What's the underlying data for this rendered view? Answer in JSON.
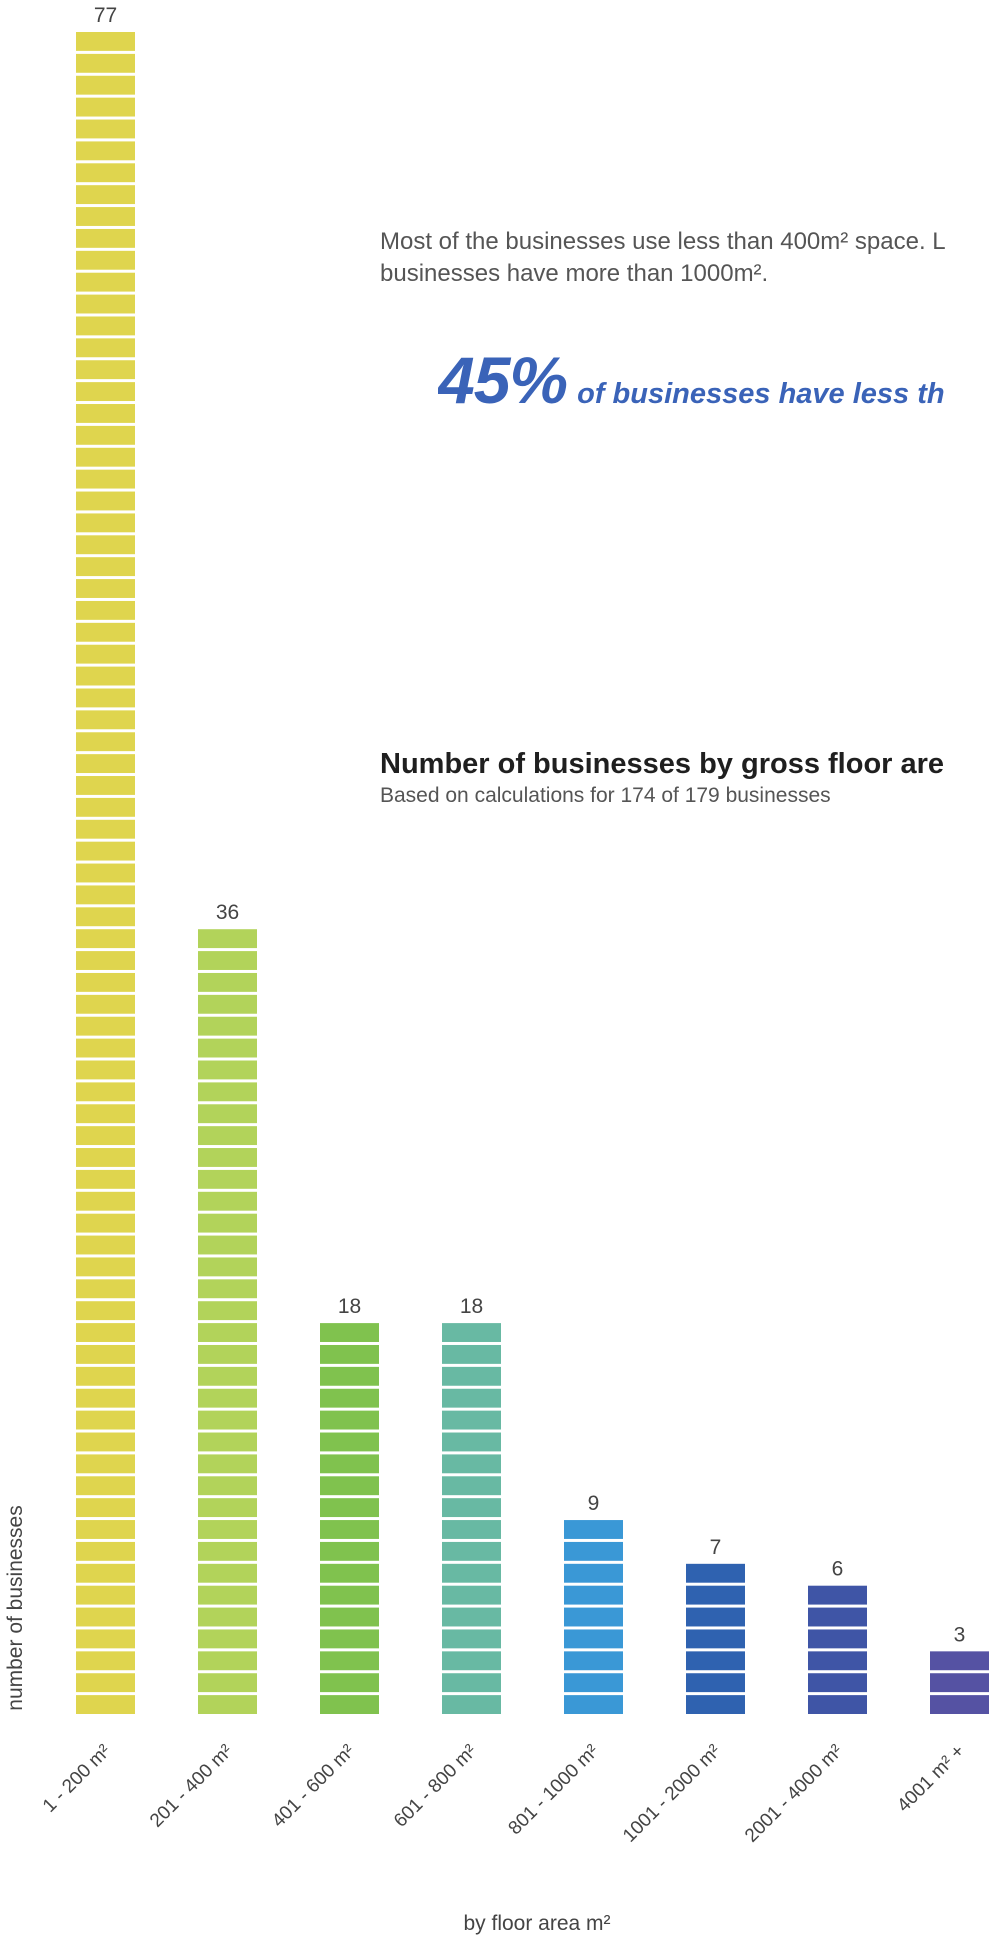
{
  "note": {
    "line1": "Most of the businesses use less than 400m² space.  L",
    "line2": "businesses have more than 1000m²."
  },
  "highlight": {
    "percent": "45%",
    "text": "of businesses have less th"
  },
  "chart_data": {
    "type": "bar",
    "title": "Number of businesses by gross floor are",
    "subtitle": "Based on calculations for 174 of 179 businesses",
    "xlabel": "by floor area  m²",
    "ylabel": "number of businesses",
    "categories": [
      "1 - 200 m²",
      "201 - 400 m²",
      "401 - 600 m²",
      "601 - 800 m²",
      "801 - 1000 m²",
      "1001 - 2000 m²",
      "2001 - 4000 m²",
      "4001 m² +"
    ],
    "values": [
      77,
      36,
      18,
      18,
      9,
      7,
      6,
      3
    ],
    "colors": [
      "#dfd54e",
      "#b2d35a",
      "#80c24e",
      "#68b9a3",
      "#3a98d6",
      "#2f62b0",
      "#3f55a6",
      "#5552a3"
    ],
    "ylim": [
      0,
      77
    ],
    "grid": false,
    "legend": "none"
  }
}
